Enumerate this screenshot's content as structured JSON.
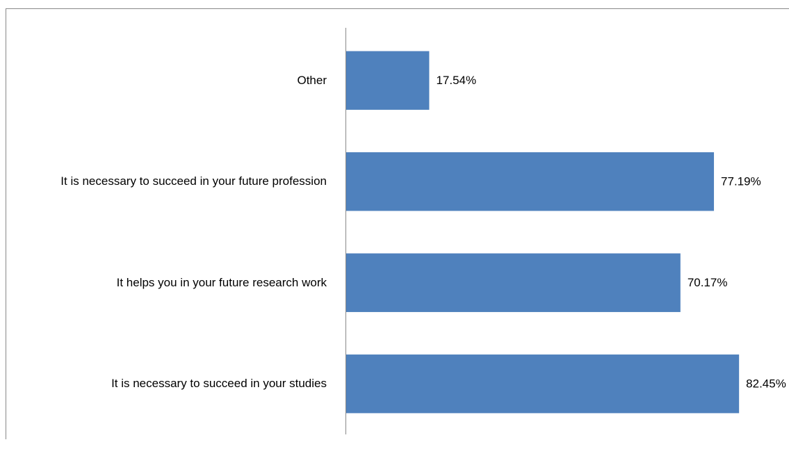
{
  "chart_data": {
    "type": "bar",
    "orientation": "horizontal",
    "categories": [
      "Other",
      "It is necessary to succeed in your future profession",
      "It helps you in your future research work",
      "It is necessary to succeed in your studies"
    ],
    "values": [
      17.54,
      77.19,
      70.17,
      82.45
    ],
    "value_labels": [
      "17.54%",
      "77.19%",
      "70.17%",
      "82.45%"
    ],
    "color": "#4f81bd",
    "xlim": [
      0,
      90
    ]
  }
}
